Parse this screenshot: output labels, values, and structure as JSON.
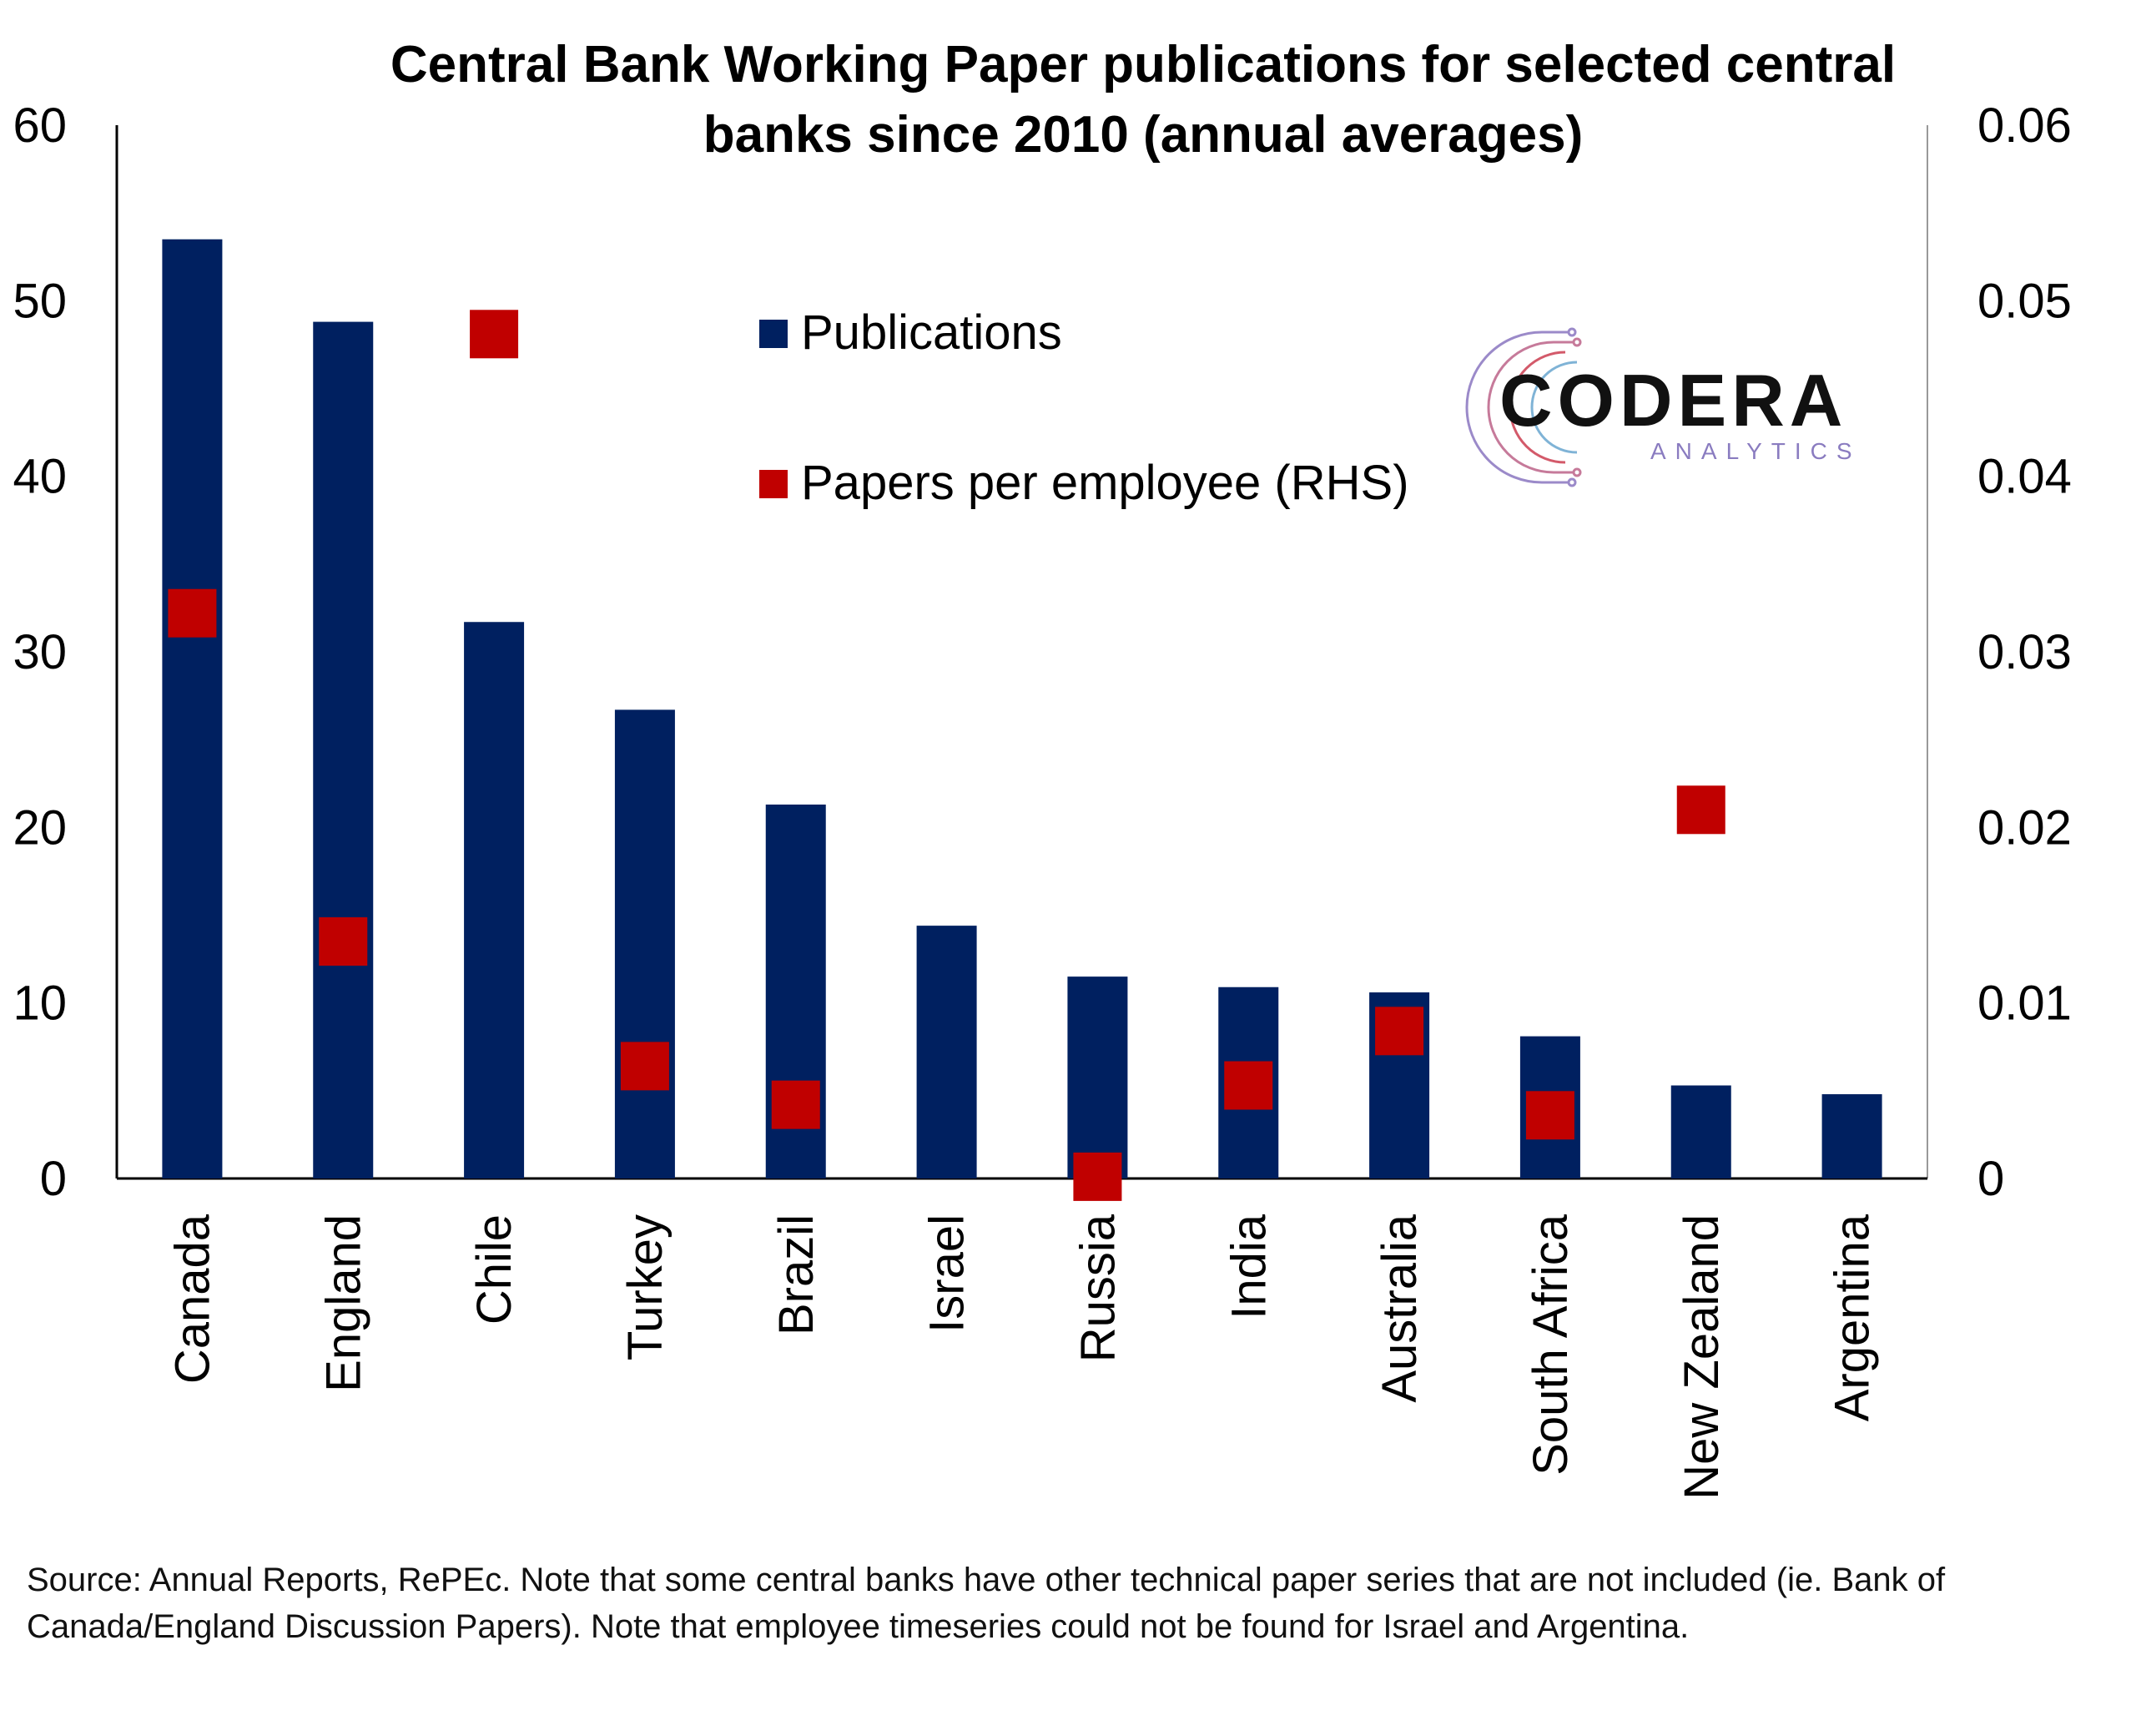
{
  "chart_data": {
    "type": "bar",
    "title_lines": [
      "Central Bank Working Paper publications for selected central",
      "banks since 2010 (annual averages)"
    ],
    "categories": [
      "Canada",
      "England",
      "Chile",
      "Turkey",
      "Brazil",
      "Israel",
      "Russia",
      "India",
      "Australia",
      "South Africa",
      "New Zealand",
      "Argentina"
    ],
    "series": [
      {
        "name": "Publications",
        "kind": "bar",
        "axis": "left",
        "color": "#002060",
        "values": [
          53.5,
          48.8,
          31.7,
          26.7,
          21.3,
          14.4,
          11.5,
          10.9,
          10.6,
          8.1,
          5.3,
          4.8
        ]
      },
      {
        "name": "Papers per employee (RHS)",
        "kind": "marker",
        "axis": "right",
        "color": "#c00000",
        "values": [
          0.0322,
          0.0135,
          0.0481,
          0.0064,
          0.0042,
          null,
          0.0001,
          0.0053,
          0.0084,
          0.0036,
          0.021,
          null
        ]
      }
    ],
    "y_left": {
      "min": 0,
      "max": 60,
      "ticks": [
        "0",
        "10",
        "20",
        "30",
        "40",
        "50",
        "60"
      ]
    },
    "y_right": {
      "min": 0,
      "max": 0.06,
      "ticks": [
        "0",
        "0.01",
        "0.02",
        "0.03",
        "0.04",
        "0.05",
        "0.06"
      ]
    },
    "grid": false,
    "legend_position": "top-center"
  },
  "logo": {
    "name": "CODERA",
    "tagline": "ANALYTICS"
  },
  "source_note": "Source: Annual Reports, RePEc. Note that some central banks have other technical paper series that are not included (ie. Bank of Canada/England Discussion Papers). Note that employee timeseries could not be found for Israel and Argentina."
}
